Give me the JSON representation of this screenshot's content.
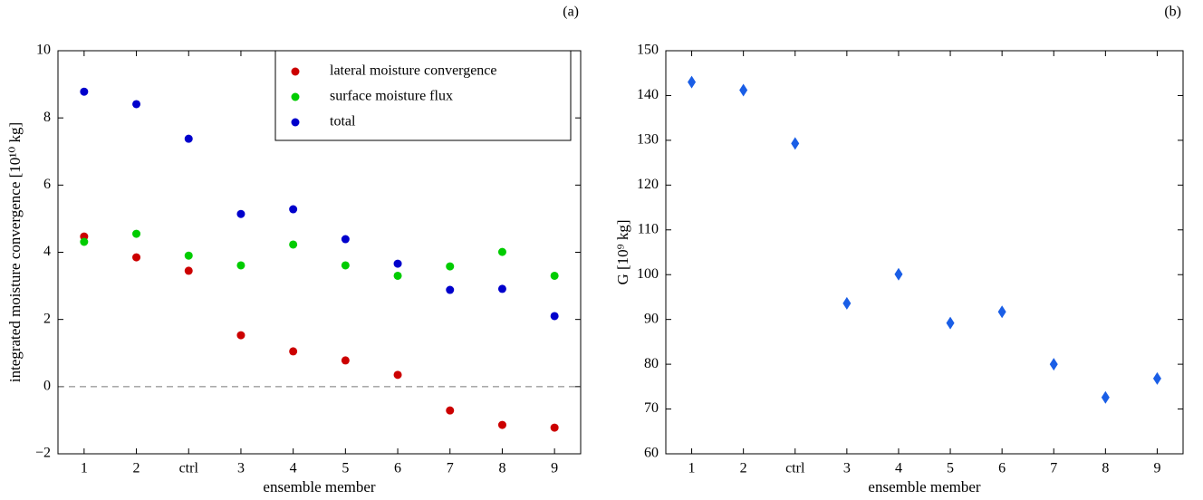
{
  "chart_data": [
    {
      "type": "scatter",
      "panel": "(a)",
      "xlabel": "ensemble member",
      "ylabel": "integrated moisture convergence [10¹⁰ kg]",
      "categories": [
        "1",
        "2",
        "ctrl",
        "3",
        "4",
        "5",
        "6",
        "7",
        "8",
        "9"
      ],
      "ylim": [
        -2,
        10
      ],
      "yticks": [
        {
          "value": -2,
          "label": "−2"
        },
        0,
        2,
        4,
        6,
        8,
        10
      ],
      "hlines": [
        0
      ],
      "legend": "upper right",
      "marker": "circle",
      "series": [
        {
          "name": "lateral moisture convergence",
          "color": "#cc0000",
          "values": [
            4.47,
            3.85,
            3.45,
            1.53,
            1.05,
            0.78,
            0.35,
            -0.71,
            -1.14,
            -1.22
          ]
        },
        {
          "name": "surface moisture flux",
          "color": "#00cc00",
          "values": [
            4.31,
            4.55,
            3.9,
            3.61,
            4.23,
            3.61,
            3.3,
            3.58,
            4.01,
            3.3
          ]
        },
        {
          "name": "total",
          "color": "#0000cc",
          "values": [
            8.78,
            8.41,
            7.38,
            5.14,
            5.28,
            4.39,
            3.66,
            2.88,
            2.91,
            2.1
          ]
        }
      ]
    },
    {
      "type": "scatter",
      "panel": "(b)",
      "xlabel": "ensemble member",
      "ylabel": "G [10⁹ kg]",
      "categories": [
        "1",
        "2",
        "ctrl",
        "3",
        "4",
        "5",
        "6",
        "7",
        "8",
        "9"
      ],
      "ylim": [
        60,
        150
      ],
      "yticks": [
        60,
        70,
        80,
        90,
        100,
        110,
        120,
        130,
        140,
        150
      ],
      "marker": "diamond",
      "color": "#1a5ee6",
      "values": [
        143,
        141.2,
        129.3,
        93.6,
        100.1,
        89.2,
        91.7,
        80,
        72.6,
        76.8
      ]
    }
  ]
}
